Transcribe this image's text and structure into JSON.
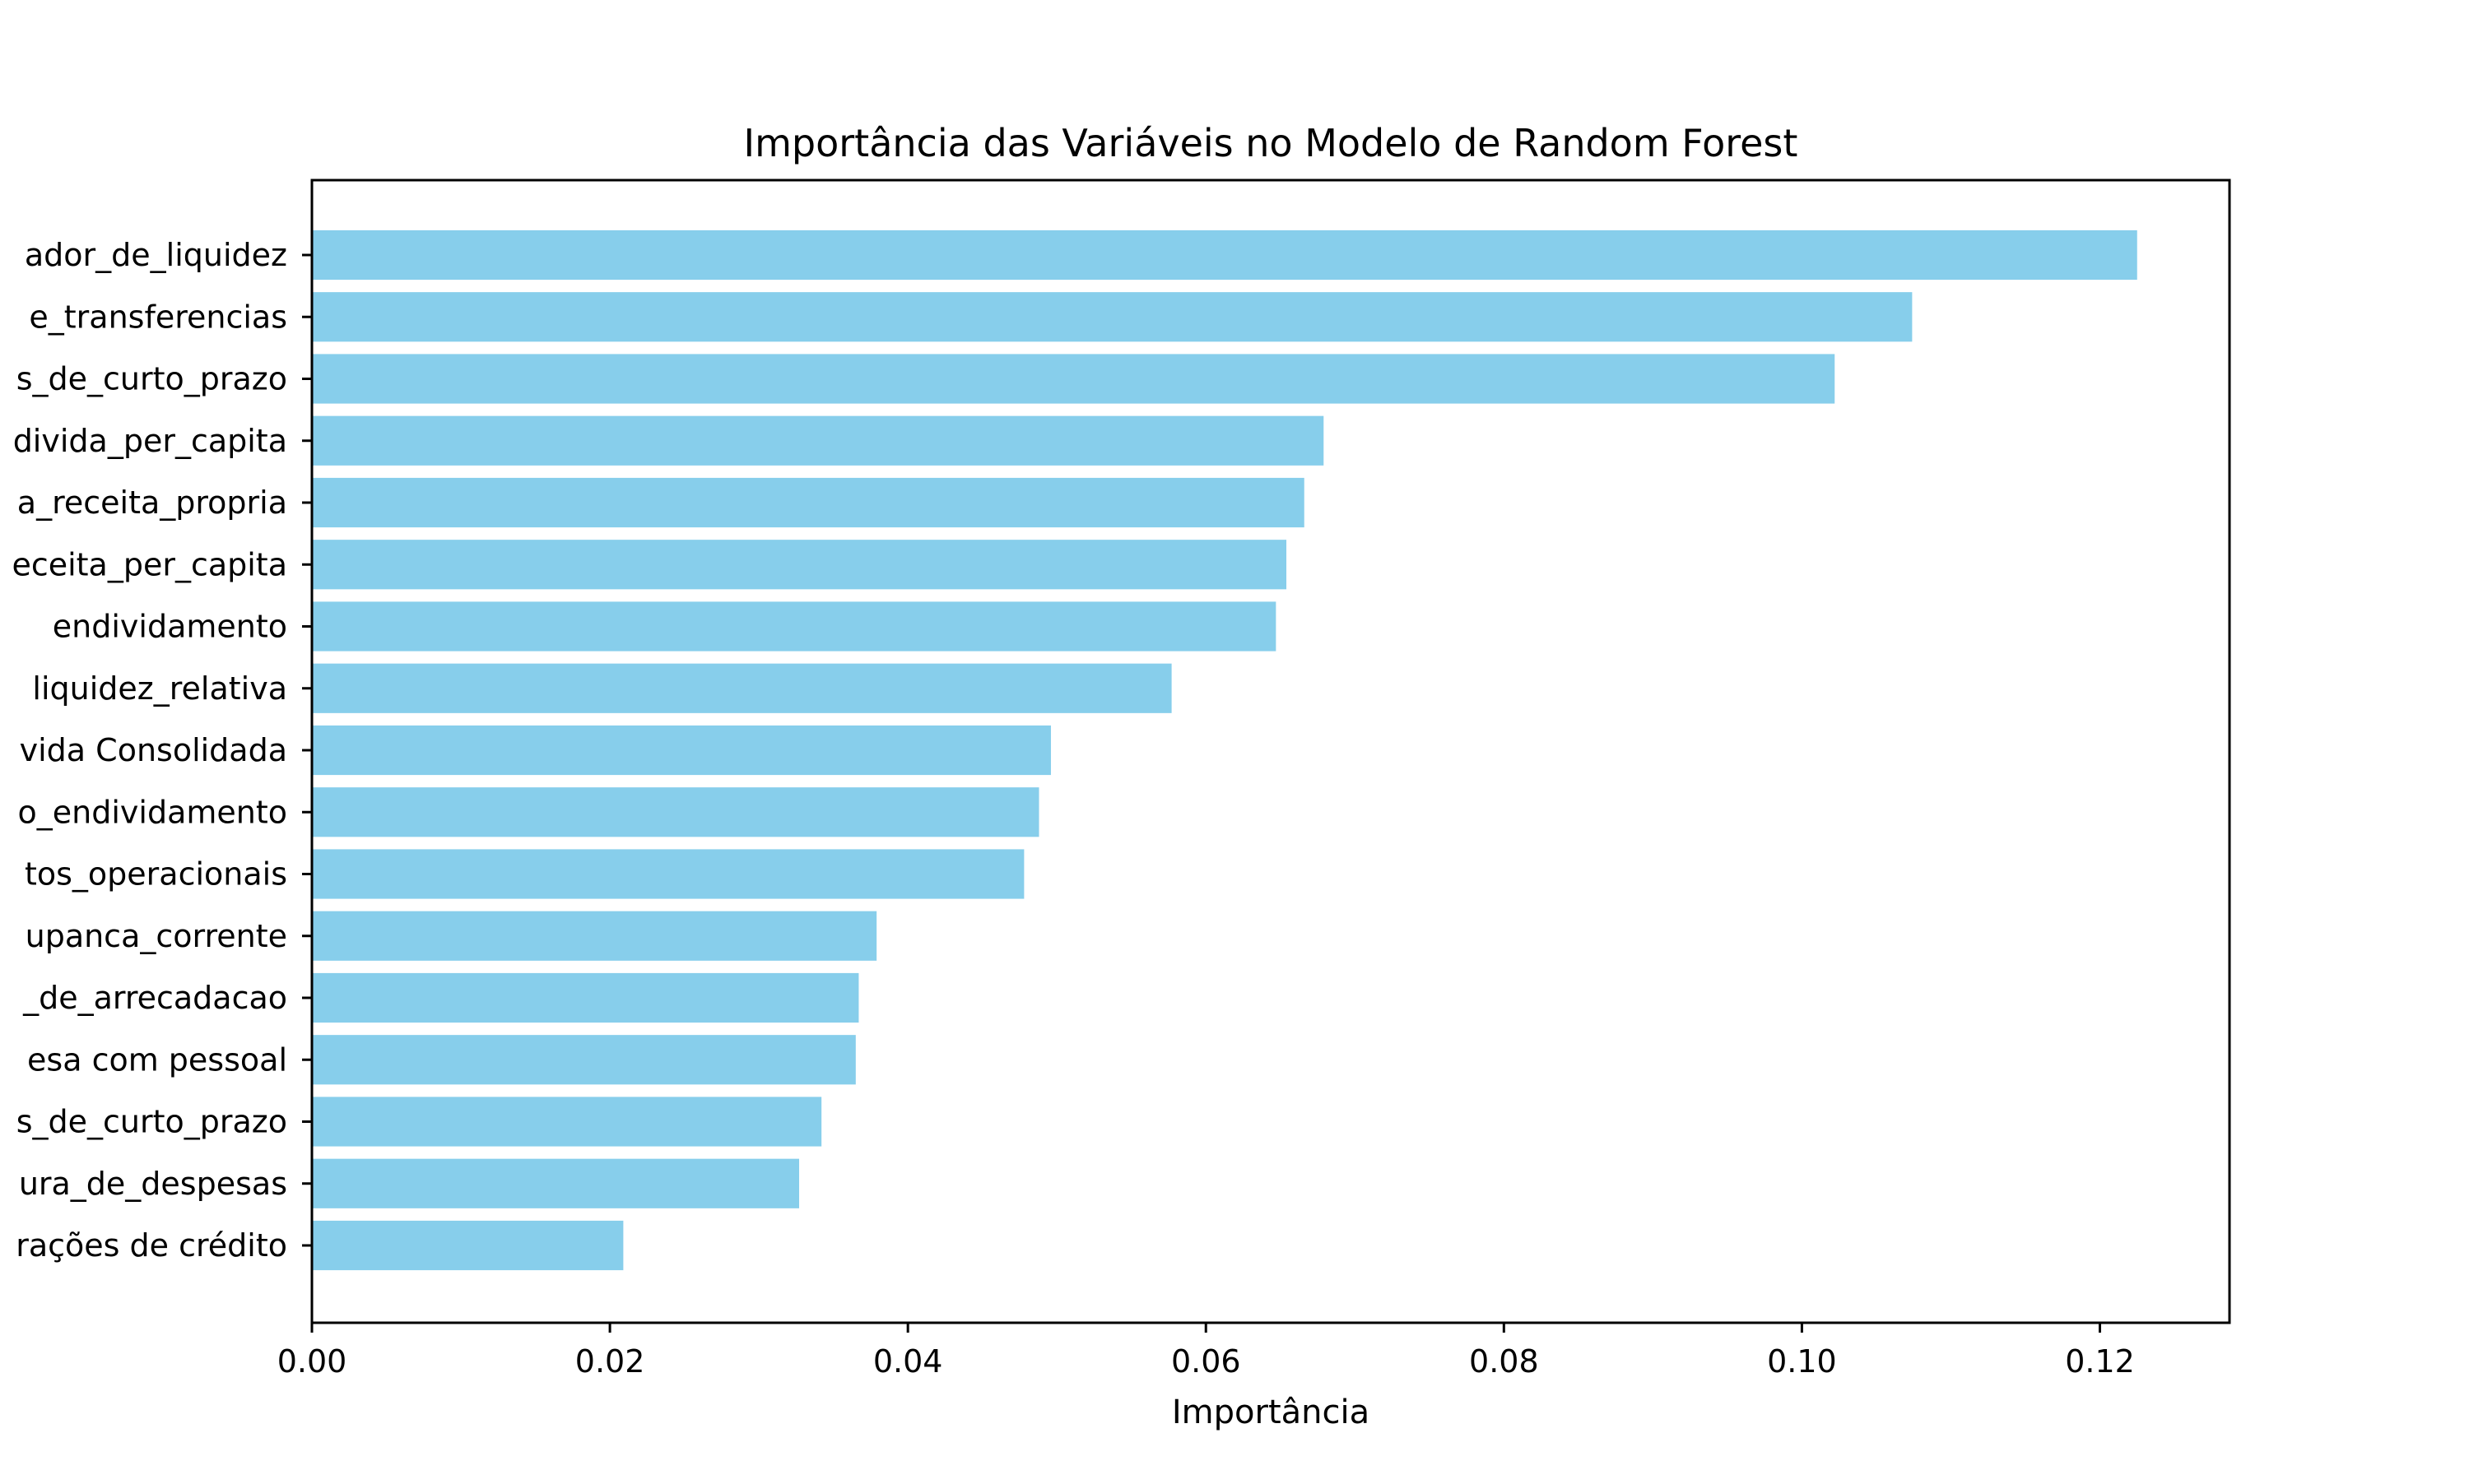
{
  "chart_data": {
    "type": "bar",
    "orientation": "horizontal",
    "title": "Importância das Variáveis no Modelo de Random Forest",
    "xlabel": "Importância",
    "ylabel": "",
    "xlim": [
      0,
      0.1287
    ],
    "xticks": [
      0.0,
      0.02,
      0.04,
      0.06,
      0.08,
      0.1,
      0.12
    ],
    "xtick_labels": [
      "0.00",
      "0.02",
      "0.04",
      "0.06",
      "0.08",
      "0.10",
      "0.12"
    ],
    "bar_color": "#87CEEB",
    "grid": false,
    "categories": [
      "ador_de_liquidez",
      "e_transferencias",
      "s_de_curto_prazo",
      "divida_per_capita",
      "a_receita_propria",
      "eceita_per_capita",
      "endividamento",
      "liquidez_relativa",
      "vida Consolidada",
      "o_endividamento",
      "tos_operacionais",
      "upanca_corrente",
      "_de_arrecadacao",
      "esa com pessoal",
      "s_de_curto_prazo",
      "ura_de_despesas",
      "rações de crédito"
    ],
    "values": [
      0.1225,
      0.1074,
      0.1022,
      0.0679,
      0.0666,
      0.0654,
      0.0647,
      0.0577,
      0.0496,
      0.0488,
      0.0478,
      0.0379,
      0.0367,
      0.0365,
      0.0342,
      0.0327,
      0.0209
    ]
  }
}
